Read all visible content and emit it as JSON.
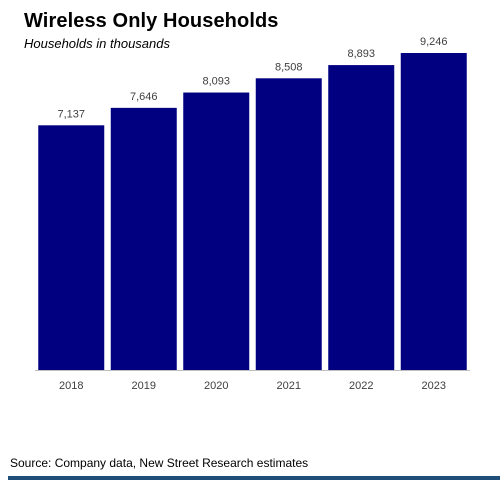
{
  "chart_data": {
    "type": "bar",
    "title": "Wireless Only Households",
    "subtitle": "Households in thousands",
    "categories": [
      "2018",
      "2019",
      "2020",
      "2021",
      "2022",
      "2023"
    ],
    "values": [
      7137,
      7646,
      8093,
      8508,
      8893,
      9246
    ],
    "value_labels": [
      "7,137",
      "7,646",
      "8,093",
      "8,508",
      "8,893",
      "9,246"
    ],
    "ylim": [
      0,
      10500
    ],
    "grid": false,
    "legend": "none",
    "bar_color": "#000080"
  },
  "source": "Source: Company data, New Street Research estimates",
  "colors": {
    "rule": "#1f4e79"
  }
}
